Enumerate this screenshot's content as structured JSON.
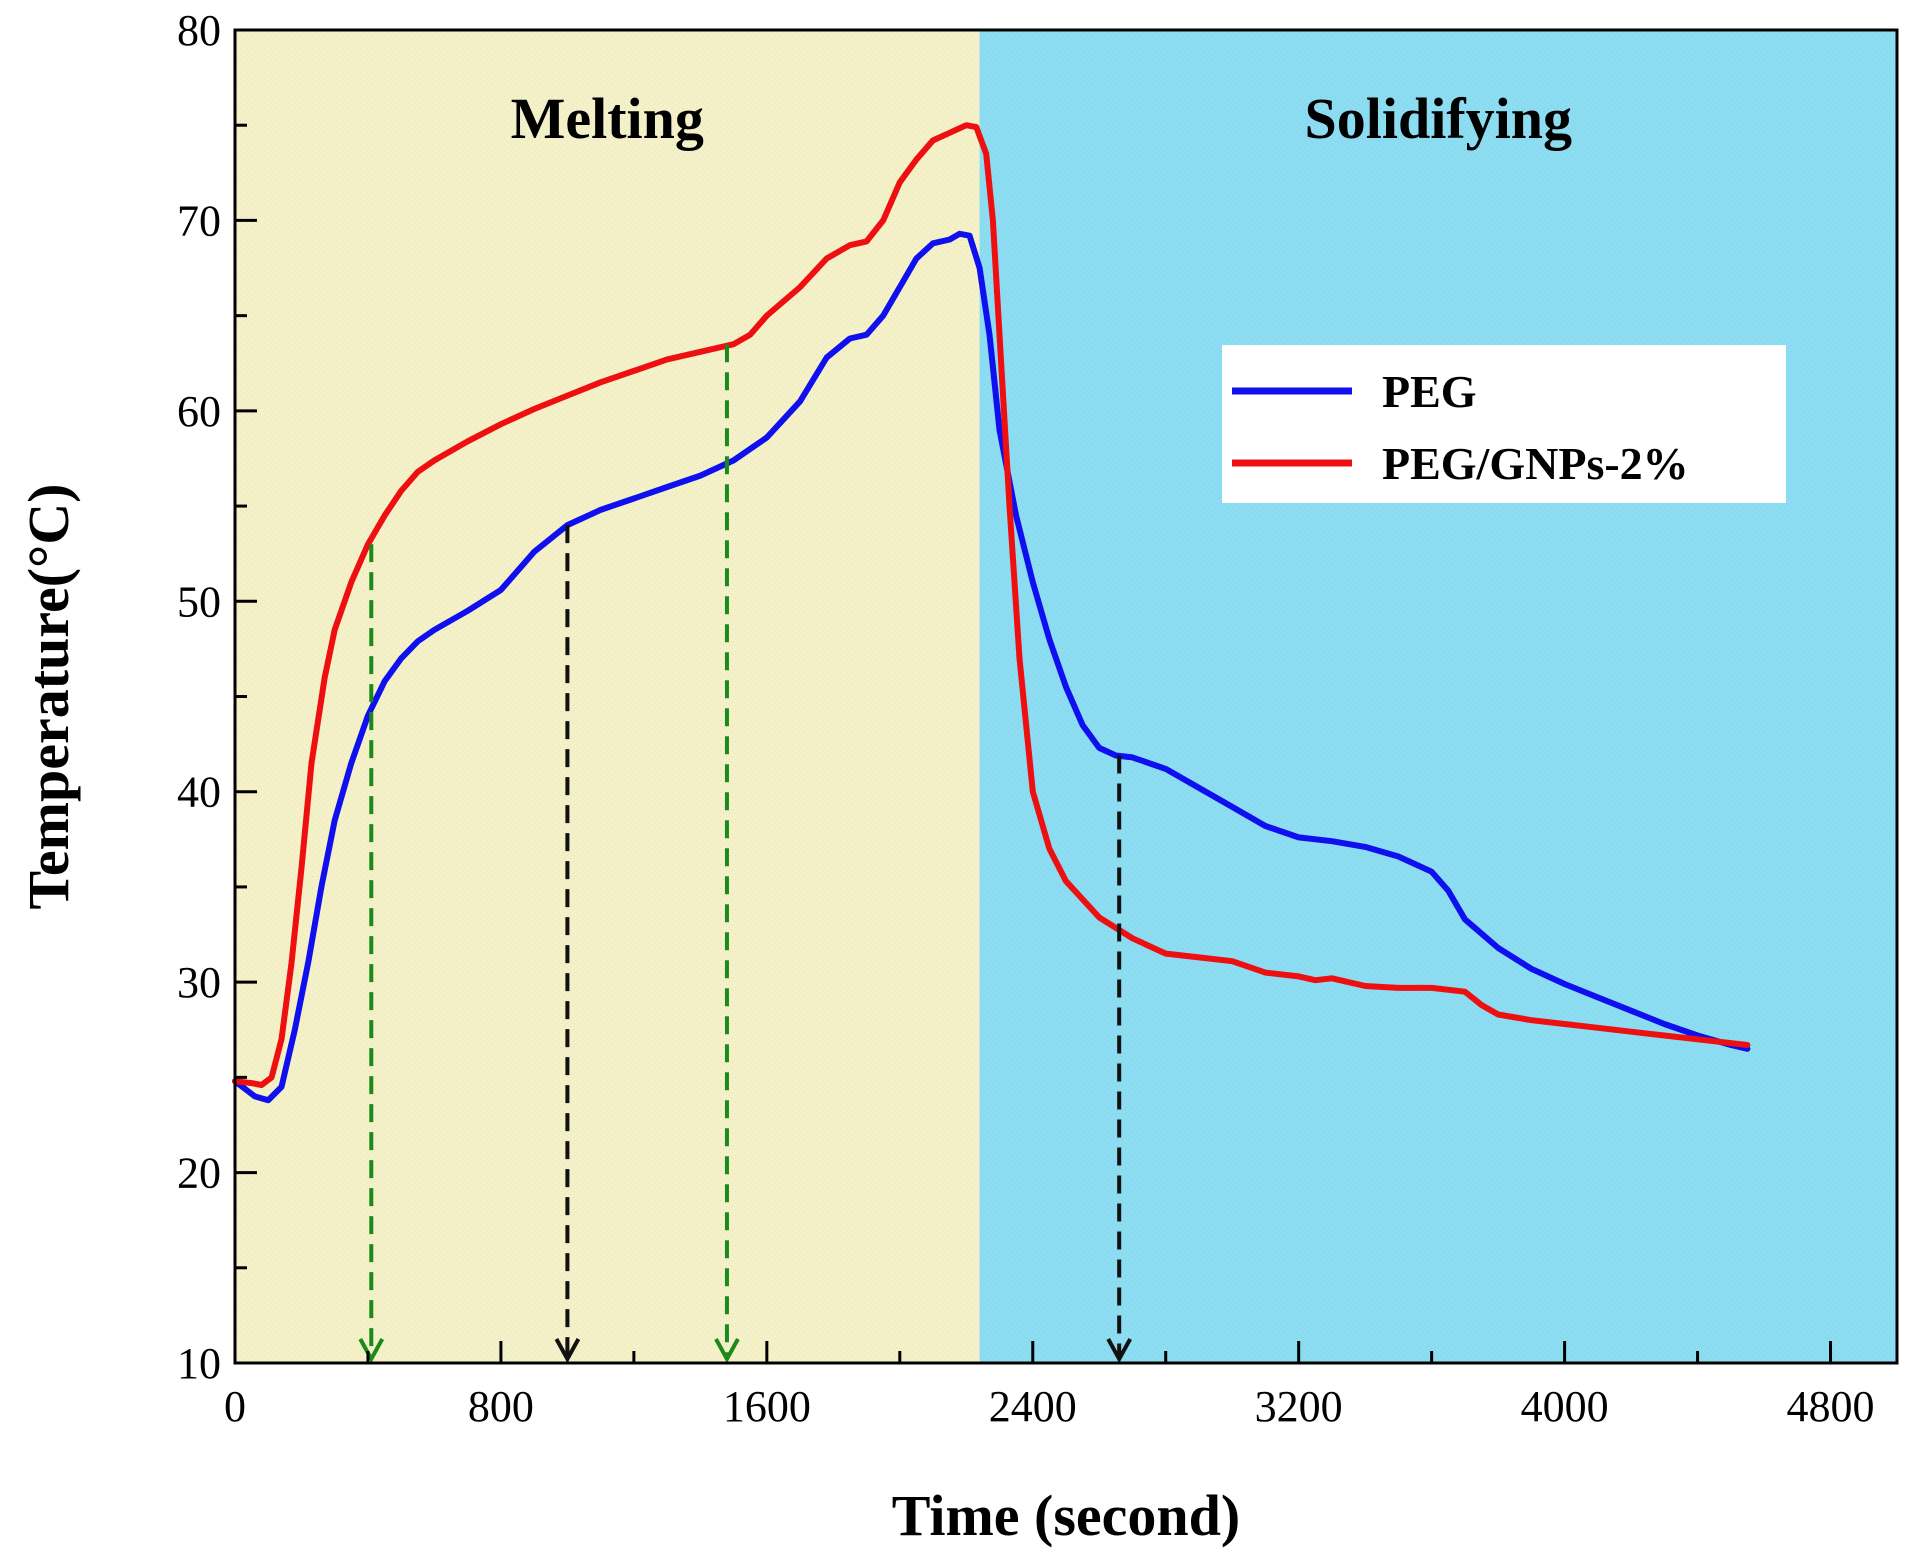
{
  "chart_data": {
    "type": "line",
    "title": "",
    "xlabel": "Time (second)",
    "ylabel": "Temperature(°C)",
    "xlim": [
      0,
      5000
    ],
    "ylim": [
      10,
      80
    ],
    "xticks": [
      0,
      800,
      1600,
      2400,
      3200,
      4000,
      4800
    ],
    "xtick_labels": [
      "0",
      "800",
      "1600",
      "2400",
      "3200",
      "4000",
      "4800"
    ],
    "yticks": [
      10,
      20,
      30,
      40,
      50,
      60,
      70,
      80
    ],
    "ytick_labels": [
      "10",
      "20",
      "30",
      "40",
      "50",
      "60",
      "70",
      "80"
    ],
    "regions": [
      {
        "label": "Melting",
        "x_start": 0,
        "x_end": 2240,
        "color": "#f4f1c9"
      },
      {
        "label": "Solidifying",
        "x_start": 2240,
        "x_end": 5000,
        "color": "#8cdcf2"
      }
    ],
    "legend_position": "right",
    "series": [
      {
        "name": "PEG",
        "color": "#1010ee",
        "x": [
          0,
          60,
          100,
          140,
          180,
          220,
          260,
          300,
          350,
          400,
          450,
          500,
          550,
          600,
          700,
          800,
          900,
          1000,
          1100,
          1200,
          1300,
          1400,
          1500,
          1600,
          1700,
          1780,
          1850,
          1900,
          1950,
          2000,
          2050,
          2100,
          2150,
          2180,
          2210,
          2240,
          2270,
          2300,
          2350,
          2400,
          2450,
          2500,
          2550,
          2600,
          2650,
          2700,
          2800,
          2900,
          3000,
          3100,
          3200,
          3300,
          3400,
          3500,
          3600,
          3650,
          3700,
          3800,
          3900,
          4000,
          4100,
          4200,
          4300,
          4400,
          4500,
          4550
        ],
        "values": [
          24.8,
          24.0,
          23.8,
          24.5,
          27.5,
          31.0,
          35.0,
          38.5,
          41.5,
          44.0,
          45.8,
          47.0,
          47.9,
          48.5,
          49.5,
          50.6,
          52.6,
          54.0,
          54.8,
          55.4,
          56.0,
          56.6,
          57.4,
          58.6,
          60.5,
          62.8,
          63.8,
          64.0,
          65.0,
          66.5,
          68.0,
          68.8,
          69.0,
          69.3,
          69.2,
          67.5,
          64.0,
          59.0,
          54.5,
          51.0,
          48.0,
          45.5,
          43.5,
          42.3,
          41.9,
          41.8,
          41.2,
          40.2,
          39.2,
          38.2,
          37.6,
          37.4,
          37.1,
          36.6,
          35.8,
          34.8,
          33.3,
          31.8,
          30.7,
          29.9,
          29.2,
          28.5,
          27.8,
          27.2,
          26.7,
          26.5
        ]
      },
      {
        "name": "PEG/GNPs-2%",
        "color": "#ee1010",
        "x": [
          0,
          50,
          80,
          110,
          140,
          170,
          200,
          230,
          270,
          300,
          350,
          400,
          450,
          500,
          550,
          600,
          700,
          800,
          900,
          1000,
          1100,
          1200,
          1300,
          1400,
          1500,
          1550,
          1600,
          1700,
          1780,
          1850,
          1900,
          1950,
          2000,
          2050,
          2100,
          2150,
          2200,
          2230,
          2260,
          2280,
          2300,
          2330,
          2360,
          2400,
          2450,
          2500,
          2600,
          2700,
          2800,
          2900,
          3000,
          3100,
          3200,
          3250,
          3300,
          3400,
          3500,
          3600,
          3700,
          3750,
          3800,
          3900,
          4000,
          4100,
          4200,
          4300,
          4400,
          4500,
          4550
        ],
        "values": [
          24.8,
          24.7,
          24.6,
          25.0,
          27.0,
          31.0,
          36.0,
          41.5,
          46.0,
          48.5,
          51.0,
          53.0,
          54.5,
          55.8,
          56.8,
          57.4,
          58.4,
          59.3,
          60.1,
          60.8,
          61.5,
          62.1,
          62.7,
          63.1,
          63.5,
          64.0,
          65.0,
          66.5,
          68.0,
          68.7,
          68.9,
          70.0,
          72.0,
          73.2,
          74.2,
          74.6,
          75.0,
          74.9,
          73.5,
          70.0,
          64.0,
          55.0,
          47.0,
          40.0,
          37.0,
          35.3,
          33.4,
          32.3,
          31.5,
          31.3,
          31.1,
          30.5,
          30.3,
          30.1,
          30.2,
          29.8,
          29.7,
          29.7,
          29.5,
          28.8,
          28.3,
          28.0,
          27.8,
          27.6,
          27.4,
          27.2,
          27.0,
          26.8,
          26.7
        ]
      }
    ],
    "annotations": [
      {
        "type": "arrow",
        "name": "melting-onset-peg-gnps-arrow",
        "x": 410,
        "y_start": 53.0,
        "y_end": 10,
        "color": "#1a8a1a"
      },
      {
        "type": "arrow",
        "name": "melting-end-peg-gnps-arrow",
        "x": 1480,
        "y_start": 63.5,
        "y_end": 10,
        "color": "#1a8a1a"
      },
      {
        "type": "arrow",
        "name": "melting-peg-arrow",
        "x": 1000,
        "y_start": 54.0,
        "y_end": 10,
        "color": "#111111"
      },
      {
        "type": "arrow",
        "name": "solidifying-peg-arrow",
        "x": 2660,
        "y_start": 41.9,
        "y_end": 10,
        "color": "#111111"
      }
    ]
  }
}
